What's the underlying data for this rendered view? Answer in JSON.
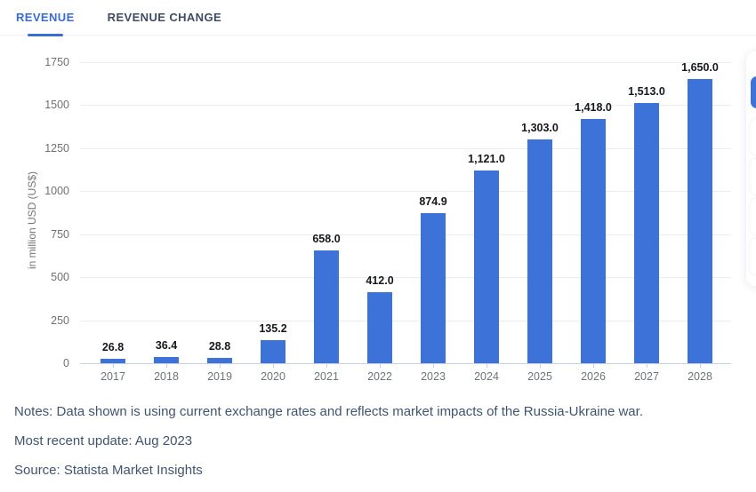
{
  "tabs": [
    {
      "label": "REVENUE",
      "active": true
    },
    {
      "label": "REVENUE CHANGE",
      "active": false
    }
  ],
  "chart_data": {
    "type": "bar",
    "categories": [
      "2017",
      "2018",
      "2019",
      "2020",
      "2021",
      "2022",
      "2023",
      "2024",
      "2025",
      "2026",
      "2027",
      "2028"
    ],
    "values": [
      26.8,
      36.4,
      28.8,
      135.2,
      658.0,
      412.0,
      874.9,
      1121.0,
      1303.0,
      1418.0,
      1513.0,
      1650.0
    ],
    "value_labels": [
      "26.8",
      "36.4",
      "28.8",
      "135.2",
      "658.0",
      "412.0",
      "874.9",
      "1,121.0",
      "1,303.0",
      "1,418.0",
      "1,513.0",
      "1,650.0"
    ],
    "title": "",
    "xlabel": "",
    "ylabel": "in million USD (US$)",
    "ylim": [
      0,
      1750
    ],
    "yticks": [
      0,
      250,
      500,
      750,
      1000,
      1250,
      1500,
      1750
    ],
    "grid": true,
    "legend": false,
    "bar_color": "#3d72d8"
  },
  "footer": {
    "notes": "Notes: Data shown is using current exchange rates and reflects market impacts of the Russia-Ukraine war.",
    "update": "Most recent update: Aug 2023",
    "source": "Source: Statista Market Insights"
  },
  "colors": {
    "accent": "#3a6cd4",
    "bar": "#3d72d8",
    "note_text": "#41546e"
  }
}
